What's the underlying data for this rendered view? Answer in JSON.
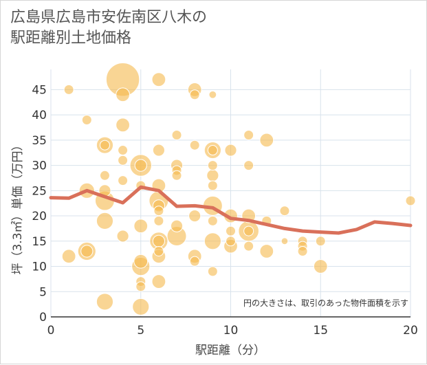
{
  "chart_data": {
    "type": "scatter",
    "title": "広島県広島市安佐南区八木の\n駅距離別土地価格",
    "xlabel": "駅距離（分）",
    "ylabel": "坪（3.3㎡）単価（万円）",
    "note": "円の大きさは、取引のあった物件面積を示す",
    "xlim": [
      0,
      20
    ],
    "ylim": [
      0,
      49
    ],
    "x_ticks": [
      0,
      5,
      10,
      15,
      20
    ],
    "y_ticks": [
      0,
      5,
      10,
      15,
      20,
      25,
      30,
      35,
      40,
      45
    ],
    "grid": true,
    "colors": {
      "bubble": "#f5b94c",
      "line": "#d9705a",
      "grid": "#d8e2ec"
    },
    "series": [
      {
        "type": "bubble",
        "points": [
          {
            "x": 1,
            "y": 45,
            "s": 1
          },
          {
            "x": 4,
            "y": 47,
            "s": 12
          },
          {
            "x": 4,
            "y": 44,
            "s": 2
          },
          {
            "x": 6,
            "y": 47,
            "s": 2
          },
          {
            "x": 8,
            "y": 45,
            "s": 2
          },
          {
            "x": 8,
            "y": 44,
            "s": 1
          },
          {
            "x": 9,
            "y": 44,
            "s": 0.6
          },
          {
            "x": 2,
            "y": 39,
            "s": 1
          },
          {
            "x": 4,
            "y": 38,
            "s": 2
          },
          {
            "x": 3,
            "y": 34,
            "s": 3
          },
          {
            "x": 3,
            "y": 34,
            "s": 1
          },
          {
            "x": 7,
            "y": 36,
            "s": 1
          },
          {
            "x": 8,
            "y": 34,
            "s": 1
          },
          {
            "x": 11,
            "y": 36,
            "s": 1
          },
          {
            "x": 12,
            "y": 35,
            "s": 2
          },
          {
            "x": 4,
            "y": 33,
            "s": 1
          },
          {
            "x": 4,
            "y": 31,
            "s": 1
          },
          {
            "x": 6,
            "y": 33,
            "s": 1.5
          },
          {
            "x": 9,
            "y": 33,
            "s": 3
          },
          {
            "x": 9,
            "y": 33,
            "s": 1
          },
          {
            "x": 10,
            "y": 33,
            "s": 1.5
          },
          {
            "x": 5,
            "y": 30,
            "s": 5
          },
          {
            "x": 5,
            "y": 30,
            "s": 1.5
          },
          {
            "x": 7,
            "y": 30,
            "s": 1.5
          },
          {
            "x": 7,
            "y": 29,
            "s": 1
          },
          {
            "x": 7,
            "y": 28,
            "s": 1
          },
          {
            "x": 9,
            "y": 30,
            "s": 1
          },
          {
            "x": 9,
            "y": 28,
            "s": 1.5
          },
          {
            "x": 11,
            "y": 30,
            "s": 1
          },
          {
            "x": 3,
            "y": 28,
            "s": 1
          },
          {
            "x": 4,
            "y": 27,
            "s": 1
          },
          {
            "x": 5,
            "y": 26,
            "s": 1
          },
          {
            "x": 6,
            "y": 26,
            "s": 2
          },
          {
            "x": 9,
            "y": 26,
            "s": 1
          },
          {
            "x": 2,
            "y": 25,
            "s": 2.5
          },
          {
            "x": 3,
            "y": 25,
            "s": 1.5
          },
          {
            "x": 3,
            "y": 23,
            "s": 4
          },
          {
            "x": 6,
            "y": 23,
            "s": 4
          },
          {
            "x": 6,
            "y": 22,
            "s": 1.5
          },
          {
            "x": 6,
            "y": 21,
            "s": 1
          },
          {
            "x": 9,
            "y": 22,
            "s": 4
          },
          {
            "x": 3,
            "y": 19,
            "s": 3
          },
          {
            "x": 6,
            "y": 19,
            "s": 1
          },
          {
            "x": 8,
            "y": 20,
            "s": 1.5
          },
          {
            "x": 9,
            "y": 19,
            "s": 1
          },
          {
            "x": 10,
            "y": 20,
            "s": 2
          },
          {
            "x": 11,
            "y": 20,
            "s": 2
          },
          {
            "x": 12,
            "y": 19,
            "s": 1
          },
          {
            "x": 13,
            "y": 21,
            "s": 1
          },
          {
            "x": 20,
            "y": 23,
            "s": 1
          },
          {
            "x": 5,
            "y": 18,
            "s": 2
          },
          {
            "x": 7,
            "y": 18,
            "s": 1.5
          },
          {
            "x": 4,
            "y": 16,
            "s": 1.5
          },
          {
            "x": 7,
            "y": 16,
            "s": 4
          },
          {
            "x": 10,
            "y": 17,
            "s": 1
          },
          {
            "x": 11,
            "y": 17,
            "s": 4.5
          },
          {
            "x": 11,
            "y": 17,
            "s": 1
          },
          {
            "x": 6,
            "y": 15,
            "s": 3.5
          },
          {
            "x": 6,
            "y": 15,
            "s": 1.5
          },
          {
            "x": 9,
            "y": 15,
            "s": 3
          },
          {
            "x": 10,
            "y": 15,
            "s": 1
          },
          {
            "x": 13,
            "y": 15,
            "s": 0.5
          },
          {
            "x": 14,
            "y": 15,
            "s": 1
          },
          {
            "x": 15,
            "y": 15,
            "s": 1
          },
          {
            "x": 2,
            "y": 13,
            "s": 3.5
          },
          {
            "x": 2,
            "y": 13,
            "s": 1.5
          },
          {
            "x": 6,
            "y": 13,
            "s": 1
          },
          {
            "x": 10,
            "y": 14,
            "s": 2
          },
          {
            "x": 11,
            "y": 14,
            "s": 1
          },
          {
            "x": 12,
            "y": 13,
            "s": 2
          },
          {
            "x": 14,
            "y": 14,
            "s": 1
          },
          {
            "x": 14,
            "y": 13,
            "s": 1
          },
          {
            "x": 1,
            "y": 12,
            "s": 2
          },
          {
            "x": 6,
            "y": 12,
            "s": 2
          },
          {
            "x": 8,
            "y": 12,
            "s": 2
          },
          {
            "x": 8,
            "y": 11,
            "s": 1
          },
          {
            "x": 5,
            "y": 11,
            "s": 2
          },
          {
            "x": 5,
            "y": 10,
            "s": 3.5
          },
          {
            "x": 15,
            "y": 10,
            "s": 2
          },
          {
            "x": 9,
            "y": 9,
            "s": 1
          },
          {
            "x": 5,
            "y": 7,
            "s": 1
          },
          {
            "x": 6,
            "y": 7,
            "s": 2
          },
          {
            "x": 5,
            "y": 6,
            "s": 1
          },
          {
            "x": 3,
            "y": 3,
            "s": 3
          },
          {
            "x": 5,
            "y": 2,
            "s": 3
          }
        ]
      },
      {
        "type": "line",
        "x": [
          0,
          1,
          2,
          3,
          4,
          5,
          6,
          7,
          8,
          9,
          10,
          11,
          12,
          13,
          14,
          15,
          16,
          17,
          18,
          19,
          20
        ],
        "y": [
          23.6,
          23.5,
          25.0,
          23.8,
          22.6,
          25.7,
          25.0,
          21.9,
          22.0,
          21.6,
          19.5,
          19.1,
          18.3,
          17.5,
          17.0,
          16.8,
          16.6,
          17.3,
          18.8,
          18.5,
          18.1
        ]
      }
    ]
  }
}
